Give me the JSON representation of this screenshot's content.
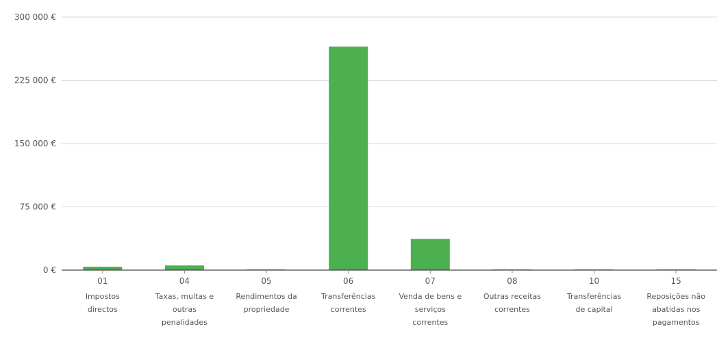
{
  "chart_data": {
    "type": "bar",
    "title": "",
    "xlabel": "",
    "ylabel": "",
    "ylim": [
      0,
      300000
    ],
    "yticks": [
      {
        "value": 0,
        "label": "0 €"
      },
      {
        "value": 75000,
        "label": "75 000 €"
      },
      {
        "value": 150000,
        "label": "150 000 €"
      },
      {
        "value": 225000,
        "label": "225 000 €"
      },
      {
        "value": 300000,
        "label": "300 000 €"
      }
    ],
    "grid": true,
    "legend": "none",
    "bar_color": "#4caf50",
    "categories": [
      {
        "code": "01",
        "name": [
          "Impostos",
          "directos"
        ]
      },
      {
        "code": "04",
        "name": [
          "Taxas, multas e",
          "outras",
          "penalidades"
        ]
      },
      {
        "code": "05",
        "name": [
          "Rendimentos da",
          "propriedade"
        ]
      },
      {
        "code": "06",
        "name": [
          "Transferências",
          "correntes"
        ]
      },
      {
        "code": "07",
        "name": [
          "Venda de bens e",
          "serviços",
          "correntes"
        ]
      },
      {
        "code": "08",
        "name": [
          "Outras receitas",
          "correntes"
        ]
      },
      {
        "code": "10",
        "name": [
          "Transferências",
          "de capital"
        ]
      },
      {
        "code": "15",
        "name": [
          "Reposições não",
          "abatidas nos",
          "pagamentos"
        ]
      }
    ],
    "values": [
      4000,
      5500,
      500,
      265000,
      37000,
      300,
      300,
      200
    ]
  }
}
